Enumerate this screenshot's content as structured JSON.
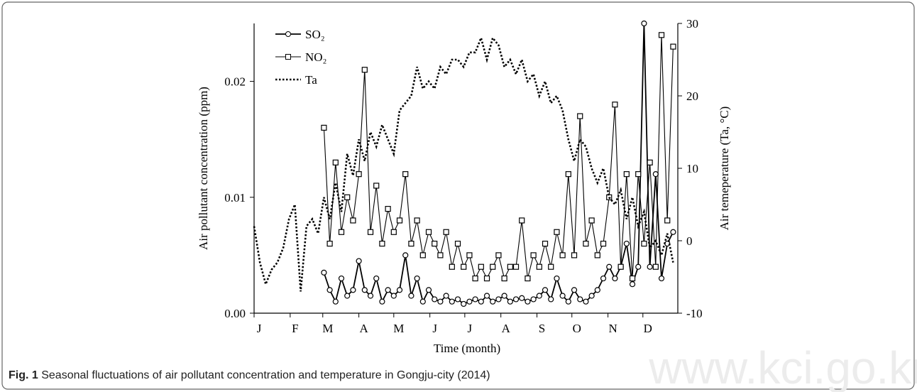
{
  "chart_data": {
    "type": "line",
    "y_label": "Air pollutant concentration (ppm)",
    "y2_label": "Air temeperature  (Ta, °C)",
    "x_label": "Time (month)",
    "caption_label": "Fig. 1",
    "caption_text": "Seasonal fluctuations of air pollutant concentration and temperature in Gongju-city (2014)",
    "watermark": "www.kci.go.kr",
    "x": [
      1,
      6,
      11,
      16,
      21,
      26,
      31,
      36,
      41,
      46,
      51,
      56,
      61,
      66,
      71,
      76,
      81,
      86,
      91,
      96,
      101,
      106,
      111,
      116,
      121,
      126,
      131,
      136,
      141,
      146,
      151,
      156,
      161,
      166,
      171,
      176,
      181,
      186,
      191,
      196,
      201,
      206,
      211,
      216,
      221,
      226,
      231,
      236,
      241,
      246,
      251,
      256,
      261,
      266,
      271,
      276,
      281,
      286,
      291,
      296,
      301,
      306,
      311,
      316,
      321,
      326,
      331,
      336,
      341,
      346,
      351,
      356,
      361
    ],
    "xlim": [
      1,
      365
    ],
    "xticks": [
      {
        "value": 1,
        "label": "J"
      },
      {
        "value": 32,
        "label": "F"
      },
      {
        "value": 60,
        "label": "M"
      },
      {
        "value": 91,
        "label": "A"
      },
      {
        "value": 121,
        "label": "M"
      },
      {
        "value": 152,
        "label": "J"
      },
      {
        "value": 182,
        "label": "J"
      },
      {
        "value": 213,
        "label": "A"
      },
      {
        "value": 244,
        "label": "S"
      },
      {
        "value": 274,
        "label": "O"
      },
      {
        "value": 305,
        "label": "N"
      },
      {
        "value": 335,
        "label": "D"
      }
    ],
    "ylim": [
      0,
      0.025
    ],
    "yticks": [
      {
        "value": 0,
        "label": "0.00"
      },
      0.01,
      0.02
    ],
    "y2lim": [
      -10,
      30
    ],
    "y2ticks": [
      -10,
      0,
      10,
      20,
      30
    ],
    "series": [
      {
        "name": "SO₂",
        "color": "#000000",
        "marker": "circle",
        "dash": "solid",
        "values": [
          null,
          null,
          null,
          null,
          null,
          null,
          null,
          null,
          null,
          null,
          null,
          null,
          0.0035,
          0.002,
          0.001,
          0.003,
          0.0015,
          0.002,
          0.0045,
          0.002,
          0.0015,
          0.003,
          0.001,
          0.002,
          0.0015,
          0.002,
          0.005,
          0.0015,
          0.003,
          0.001,
          0.002,
          0.0012,
          0.001,
          0.0015,
          0.001,
          0.0012,
          0.0008,
          0.001,
          0.0012,
          0.001,
          0.0015,
          0.001,
          0.0012,
          0.0015,
          0.001,
          0.0012,
          0.0013,
          0.001,
          0.0012,
          0.0015,
          0.002,
          0.0012,
          0.003,
          0.0015,
          0.001,
          0.002,
          0.0012,
          0.001,
          0.0015,
          0.002,
          0.003,
          0.004,
          0.003,
          0.004,
          0.006,
          0.0025,
          0.004,
          0.025,
          0.004,
          0.012,
          0.003,
          0.006,
          0.007
        ]
      },
      {
        "name": "NO₂",
        "color": "#000000",
        "marker": "square",
        "dash": "solid",
        "values": [
          null,
          null,
          null,
          null,
          null,
          null,
          null,
          null,
          null,
          null,
          null,
          null,
          0.016,
          0.006,
          0.013,
          0.007,
          0.01,
          0.008,
          0.012,
          0.021,
          0.007,
          0.011,
          0.006,
          0.009,
          0.007,
          0.008,
          0.012,
          0.006,
          0.008,
          0.005,
          0.007,
          0.006,
          0.005,
          0.007,
          0.004,
          0.006,
          0.004,
          0.005,
          0.003,
          0.004,
          0.003,
          0.004,
          0.005,
          0.003,
          0.004,
          0.004,
          0.008,
          0.003,
          0.005,
          0.004,
          0.006,
          0.004,
          0.007,
          0.005,
          0.012,
          0.005,
          0.017,
          0.006,
          0.008,
          0.005,
          0.006,
          0.01,
          0.018,
          0.004,
          0.012,
          0.003,
          0.012,
          0.006,
          0.013,
          0.004,
          0.024,
          0.008,
          0.023
        ]
      },
      {
        "name": "Ta",
        "color": "#000000",
        "marker": "none",
        "dash": "dotted",
        "axis": "y2",
        "values": [
          2,
          -3,
          -6,
          -4,
          -3,
          -1,
          3,
          5,
          -7,
          2,
          3,
          1,
          6,
          3,
          8,
          4,
          12,
          9,
          14,
          11,
          15,
          13,
          16,
          14,
          12,
          18,
          19,
          20,
          24,
          21,
          22,
          21,
          24,
          23,
          25,
          25,
          24,
          26,
          26,
          28,
          25,
          28,
          27,
          24,
          25,
          23,
          25,
          22,
          23,
          20,
          22,
          19,
          20,
          18,
          14,
          11,
          14,
          13,
          10,
          8,
          10,
          6,
          5,
          7,
          3,
          6,
          2,
          4,
          -1,
          0,
          -2,
          1,
          -3
        ]
      }
    ]
  }
}
